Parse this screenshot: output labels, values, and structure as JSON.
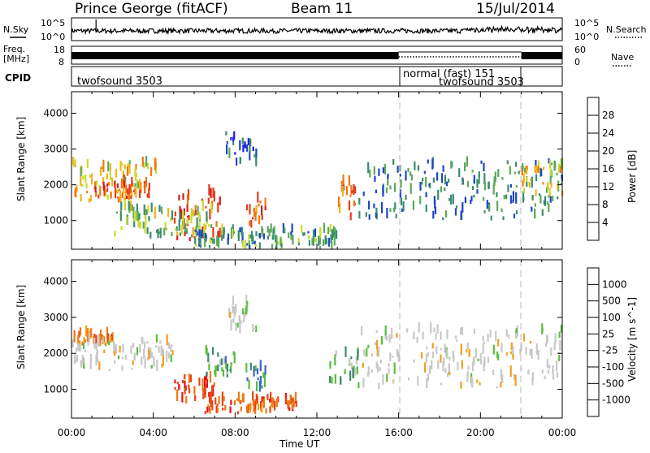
{
  "header": {
    "title": "Prince George (fitACF)",
    "beam": "Beam 11",
    "date": "15/Jul/2014"
  },
  "top_panels": {
    "nsky_label": "N.Sky",
    "nsearch_label": "N.Search",
    "nsky_ticks": [
      "10^5",
      "10^0"
    ],
    "nsearch_ticks": [
      "10^5",
      "10^0"
    ],
    "freq_label_line1": "Freq.",
    "freq_label_line2": "[MHz]",
    "freq_ticks": [
      "18",
      "8"
    ],
    "nave_label": "Nave",
    "nave_ticks": [
      "60",
      "0"
    ],
    "cpid_label": "CPID",
    "programs": [
      {
        "name": "twofsound 3503",
        "start": "00:00",
        "end": "16:00"
      },
      {
        "name": "normal (fast) 151",
        "start": "16:00",
        "end": "22:00"
      },
      {
        "name": "twofsound 3503",
        "start": "22:00",
        "end": "24:00"
      }
    ]
  },
  "chart_data": [
    {
      "type": "heatmap",
      "panel": "power",
      "ylabel": "Slant Range [km]",
      "xlabel": "Time UT",
      "x_ticks": [
        "00:00",
        "04:00",
        "08:00",
        "12:00",
        "16:00",
        "20:00",
        "00:00"
      ],
      "y_ticks": [
        "1000",
        "2000",
        "3000",
        "4000"
      ],
      "ylim": [
        200,
        4600
      ],
      "colorbar_label": "Power [dB]",
      "colorbar_ticks": [
        "4",
        "8",
        "12",
        "16",
        "20",
        "24",
        "28"
      ],
      "colorbar_colors": [
        "#1e1ee6",
        "#1e46c8",
        "#3c8c6e",
        "#5aaa5a",
        "#c8dc32",
        "#f0b41e",
        "#f07814",
        "#e63c1e",
        "#d21e1e"
      ],
      "echo_regions": [
        {
          "t0": 0.0,
          "t1": 4.2,
          "r0": 1500,
          "r1": 2600,
          "level": 0.6
        },
        {
          "t0": 1.0,
          "t1": 3.8,
          "r0": 1600,
          "r1": 2000,
          "level": 0.8
        },
        {
          "t0": 5.0,
          "t1": 7.3,
          "r0": 400,
          "r1": 1700,
          "level": 0.95
        },
        {
          "t0": 2.0,
          "t1": 7.0,
          "r0": 500,
          "r1": 1300,
          "level": 0.4
        },
        {
          "t0": 8.5,
          "t1": 9.5,
          "r0": 800,
          "r1": 1600,
          "level": 0.85
        },
        {
          "t0": 13.0,
          "t1": 14.0,
          "r0": 1000,
          "r1": 2000,
          "level": 0.8
        },
        {
          "t0": 14.0,
          "t1": 24.0,
          "r0": 1000,
          "r1": 2600,
          "level": 0.25
        },
        {
          "t0": 22.0,
          "t1": 24.0,
          "r0": 1600,
          "r1": 2500,
          "level": 0.55
        },
        {
          "t0": 7.5,
          "t1": 9.0,
          "r0": 2500,
          "r1": 3400,
          "level": 0.15
        },
        {
          "t0": 6.0,
          "t1": 13.0,
          "r0": 200,
          "r1": 700,
          "level": 0.3
        }
      ]
    },
    {
      "type": "heatmap",
      "panel": "velocity",
      "ylabel": "Slant Range [km]",
      "xlabel": "Time UT",
      "x_ticks": [
        "00:00",
        "04:00",
        "08:00",
        "12:00",
        "16:00",
        "20:00",
        "00:00"
      ],
      "y_ticks": [
        "1000",
        "2000",
        "3000",
        "4000"
      ],
      "ylim": [
        200,
        4600
      ],
      "colorbar_label": "Velocity [m s^-1]",
      "colorbar_ticks": [
        "1000",
        "500",
        "100",
        "25",
        "-25",
        "-100",
        "-500",
        "-1000"
      ],
      "colorbar_colors": [
        "#1e28a0",
        "#3c64c8",
        "#3c8c6e",
        "#5abe3c",
        "#c8c8c8",
        "#c8c8c8",
        "#f0a01e",
        "#f07814",
        "#e64614",
        "#e61414"
      ],
      "echo_regions": [
        {
          "t0": 0.0,
          "t1": 2.0,
          "r0": 2200,
          "r1": 2500,
          "level": -0.6
        },
        {
          "t0": 0.0,
          "t1": 5.0,
          "r0": 1500,
          "r1": 2300,
          "level": 0.0
        },
        {
          "t0": 5.0,
          "t1": 7.0,
          "r0": 600,
          "r1": 1300,
          "level": -0.8
        },
        {
          "t0": 6.5,
          "t1": 8.0,
          "r0": 1300,
          "r1": 2000,
          "level": 0.5
        },
        {
          "t0": 8.5,
          "t1": 9.5,
          "r0": 900,
          "r1": 1600,
          "level": 0.6
        },
        {
          "t0": 14.0,
          "t1": 24.0,
          "r0": 1000,
          "r1": 2600,
          "level": 0.0
        },
        {
          "t0": 6.5,
          "t1": 11.0,
          "r0": 300,
          "r1": 700,
          "level": -0.7
        },
        {
          "t0": 12.5,
          "t1": 14.0,
          "r0": 1000,
          "r1": 2000,
          "level": 0.3
        },
        {
          "t0": 7.5,
          "t1": 9.0,
          "r0": 2500,
          "r1": 3400,
          "level": 0.0
        }
      ]
    }
  ]
}
